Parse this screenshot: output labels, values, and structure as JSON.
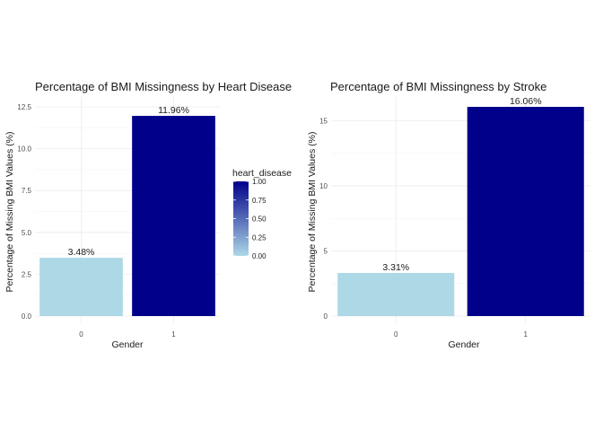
{
  "chart_data": [
    {
      "type": "bar",
      "title": "Percentage of BMI Missingness by Heart Disease",
      "xlabel": "Gender",
      "ylabel": "Percentage of Missing BMI Values (%)",
      "categories": [
        "0",
        "1"
      ],
      "values": [
        3.48,
        11.96
      ],
      "data_labels": [
        "3.48%",
        "11.96%"
      ],
      "ylim": [
        0,
        12.5
      ],
      "yticks": [
        0.0,
        2.5,
        5.0,
        7.5,
        10.0,
        12.5
      ],
      "ytick_labels": [
        "0.0",
        "2.5",
        "5.0",
        "7.5",
        "10.0",
        "12.5"
      ],
      "fill_values": [
        0,
        1
      ],
      "grid": true
    },
    {
      "type": "bar",
      "title": "Percentage of BMI Missingness by Stroke",
      "xlabel": "Gender",
      "ylabel": "Percentage of Missing BMI Values (%)",
      "categories": [
        "0",
        "1"
      ],
      "values": [
        3.31,
        16.06
      ],
      "data_labels": [
        "3.31%",
        "16.06%"
      ],
      "ylim": [
        0,
        16.06
      ],
      "yticks": [
        0,
        5,
        10,
        15
      ],
      "ytick_labels": [
        "0",
        "5",
        "10",
        "15"
      ],
      "fill_values": [
        0,
        1
      ],
      "grid": true
    }
  ],
  "legend": {
    "title": "heart_disease",
    "ticks": [
      0.0,
      0.25,
      0.5,
      0.75,
      1.0
    ],
    "tick_labels": [
      "0.00",
      "0.25",
      "0.50",
      "0.75",
      "1.00"
    ],
    "low_color": "#ADD8E6",
    "high_color": "#00008B"
  }
}
